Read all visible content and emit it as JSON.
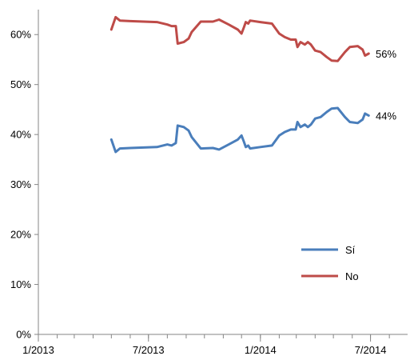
{
  "chart_data": {
    "type": "line",
    "title": "",
    "xlabel": "",
    "ylabel": "",
    "x_ticks": [
      "1/2013",
      "7/2013",
      "1/2014",
      "7/2014"
    ],
    "x_tick_dates": [
      "2013-01-01",
      "2013-07-01",
      "2014-01-01",
      "2014-07-01"
    ],
    "xlim": [
      "2013-01-01",
      "2014-08-31"
    ],
    "y_ticks": [
      "0%",
      "10%",
      "20%",
      "30%",
      "40%",
      "50%",
      "60%"
    ],
    "ylim": [
      0,
      65
    ],
    "grid": false,
    "legend": "bottom-right",
    "series": [
      {
        "name": "Sí",
        "color": "#4A7EBB",
        "end_label": "44%",
        "points": [
          [
            "2013-05-01",
            39.0
          ],
          [
            "2013-05-08",
            36.5
          ],
          [
            "2013-05-15",
            37.2
          ],
          [
            "2013-06-01",
            37.3
          ],
          [
            "2013-07-15",
            37.5
          ],
          [
            "2013-08-01",
            38.0
          ],
          [
            "2013-08-08",
            37.8
          ],
          [
            "2013-08-15",
            38.3
          ],
          [
            "2013-08-18",
            41.8
          ],
          [
            "2013-08-28",
            41.5
          ],
          [
            "2013-09-05",
            40.8
          ],
          [
            "2013-09-10",
            39.5
          ],
          [
            "2013-09-25",
            37.2
          ],
          [
            "2013-10-15",
            37.3
          ],
          [
            "2013-10-25",
            37.0
          ],
          [
            "2013-11-10",
            38.0
          ],
          [
            "2013-11-25",
            39.0
          ],
          [
            "2013-12-01",
            39.8
          ],
          [
            "2013-12-05",
            38.5
          ],
          [
            "2013-12-08",
            37.5
          ],
          [
            "2013-12-12",
            37.8
          ],
          [
            "2013-12-15",
            37.2
          ],
          [
            "2014-01-01",
            37.5
          ],
          [
            "2014-01-20",
            37.8
          ],
          [
            "2014-02-01",
            39.8
          ],
          [
            "2014-02-10",
            40.5
          ],
          [
            "2014-02-20",
            41.0
          ],
          [
            "2014-02-28",
            41.0
          ],
          [
            "2014-03-03",
            42.5
          ],
          [
            "2014-03-08",
            41.5
          ],
          [
            "2014-03-15",
            42.0
          ],
          [
            "2014-03-20",
            41.5
          ],
          [
            "2014-03-25",
            42.0
          ],
          [
            "2014-04-01",
            43.2
          ],
          [
            "2014-04-10",
            43.5
          ],
          [
            "2014-04-20",
            44.5
          ],
          [
            "2014-04-28",
            45.2
          ],
          [
            "2014-05-08",
            45.3
          ],
          [
            "2014-05-20",
            43.5
          ],
          [
            "2014-05-28",
            42.5
          ],
          [
            "2014-06-10",
            42.3
          ],
          [
            "2014-06-18",
            43.0
          ],
          [
            "2014-06-22",
            44.2
          ],
          [
            "2014-06-28",
            43.8
          ]
        ]
      },
      {
        "name": "No",
        "color": "#BE4B48",
        "end_label": "56%",
        "points": [
          [
            "2013-05-01",
            61.0
          ],
          [
            "2013-05-08",
            63.5
          ],
          [
            "2013-05-15",
            62.8
          ],
          [
            "2013-06-01",
            62.7
          ],
          [
            "2013-07-15",
            62.5
          ],
          [
            "2013-08-01",
            62.0
          ],
          [
            "2013-08-08",
            61.7
          ],
          [
            "2013-08-15",
            61.7
          ],
          [
            "2013-08-18",
            58.2
          ],
          [
            "2013-08-28",
            58.5
          ],
          [
            "2013-09-05",
            59.2
          ],
          [
            "2013-09-10",
            60.5
          ],
          [
            "2013-09-25",
            62.6
          ],
          [
            "2013-10-15",
            62.6
          ],
          [
            "2013-10-25",
            63.0
          ],
          [
            "2013-11-10",
            62.0
          ],
          [
            "2013-11-25",
            61.0
          ],
          [
            "2013-12-01",
            60.2
          ],
          [
            "2013-12-05",
            61.5
          ],
          [
            "2013-12-08",
            62.5
          ],
          [
            "2013-12-12",
            62.2
          ],
          [
            "2013-12-15",
            62.8
          ],
          [
            "2014-01-01",
            62.5
          ],
          [
            "2014-01-20",
            62.2
          ],
          [
            "2014-02-01",
            60.2
          ],
          [
            "2014-02-10",
            59.5
          ],
          [
            "2014-02-20",
            59.0
          ],
          [
            "2014-02-28",
            59.0
          ],
          [
            "2014-03-03",
            57.5
          ],
          [
            "2014-03-08",
            58.5
          ],
          [
            "2014-03-15",
            58.0
          ],
          [
            "2014-03-20",
            58.5
          ],
          [
            "2014-03-25",
            58.0
          ],
          [
            "2014-04-01",
            56.8
          ],
          [
            "2014-04-10",
            56.5
          ],
          [
            "2014-04-20",
            55.5
          ],
          [
            "2014-04-28",
            54.8
          ],
          [
            "2014-05-08",
            54.7
          ],
          [
            "2014-05-20",
            56.5
          ],
          [
            "2014-05-28",
            57.5
          ],
          [
            "2014-06-10",
            57.7
          ],
          [
            "2014-06-18",
            57.0
          ],
          [
            "2014-06-22",
            55.8
          ],
          [
            "2014-06-28",
            56.2
          ]
        ]
      }
    ]
  }
}
